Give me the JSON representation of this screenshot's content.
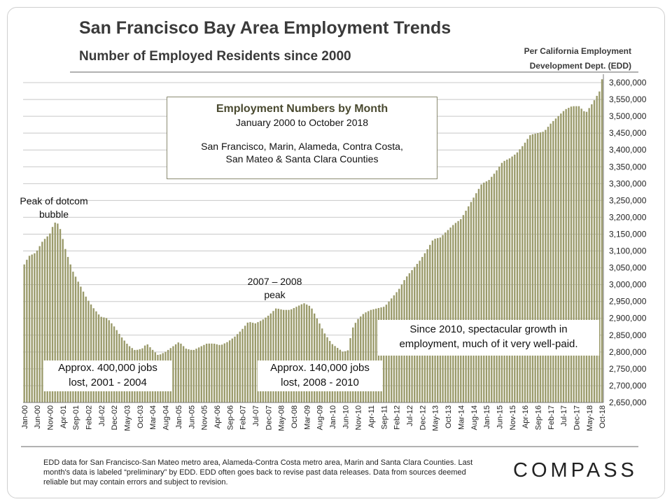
{
  "header": {
    "title": "San Francisco Bay Area Employment Trends",
    "subtitle": "Number of Employed  Residents since 2000",
    "source_line1": "Per California Employment",
    "source_line2": "Development Dept. (EDD)"
  },
  "infobox": {
    "title": "Employment Numbers by Month",
    "range": "January 2000 to October 2018",
    "counties_line1": "San Francisco, Marin, Alameda, Contra Costa,",
    "counties_line2": "San Mateo & Santa Clara Counties"
  },
  "annotations": {
    "dotcom_line1": "Peak of dotcom",
    "dotcom_line2": "bubble",
    "peak0708_line1": "2007 – 2008",
    "peak0708_line2": "peak",
    "lost0104_line1": "Approx. 400,000 jobs",
    "lost0104_line2": "lost, 2001 - 2004",
    "lost0810_line1": "Approx. 140,000 jobs",
    "lost0810_line2": "lost, 2008 - 2010",
    "growth_line1": "Since 2010, spectacular growth in",
    "growth_line2": "employment, much of it very well-paid."
  },
  "footer": {
    "footnote": "EDD data for San Francisco-San Mateo metro area, Alameda-Contra Costa metro area, Marin and Santa Clara Counties. Last month's data is labeled “preliminary” by EDD. EDD often goes back to revise past data releases. Data from sources deemed reliable but may contain errors and subject to revision.",
    "logo": "COMPASS"
  },
  "colors": {
    "bar": "#9a9a6a",
    "grid": "#c8c8c8",
    "axis": "#777777",
    "text": "#222222"
  },
  "chart_data": {
    "type": "bar",
    "title": "Employment Numbers by Month",
    "start": "Jan-00",
    "end": "Oct-18",
    "months": 226,
    "ylim": [
      2650000,
      3625000
    ],
    "yticks": [
      2650000,
      2700000,
      2750000,
      2800000,
      2850000,
      2900000,
      2950000,
      3000000,
      3050000,
      3100000,
      3150000,
      3200000,
      3250000,
      3300000,
      3350000,
      3400000,
      3450000,
      3500000,
      3550000,
      3600000
    ],
    "ytick_labels": [
      "2,650,000",
      "2,700,000",
      "2,750,000",
      "2,800,000",
      "2,850,000",
      "2,900,000",
      "2,950,000",
      "3,000,000",
      "3,050,000",
      "3,100,000",
      "3,150,000",
      "3,200,000",
      "3,250,000",
      "3,300,000",
      "3,350,000",
      "3,400,000",
      "3,450,000",
      "3,500,000",
      "3,550,000",
      "3,600,000"
    ],
    "xtick_labels": [
      "Jan-00",
      "Jun-00",
      "Nov-00",
      "Apr-01",
      "Sep-01",
      "Feb-02",
      "Jul-02",
      "Dec-02",
      "May-03",
      "Oct-03",
      "Mar-04",
      "Aug-04",
      "Jan-05",
      "Jun-05",
      "Nov-05",
      "Apr-06",
      "Sep-06",
      "Feb-07",
      "Jul-07",
      "Dec-07",
      "May-08",
      "Oct-08",
      "Mar-09",
      "Aug-09",
      "Jan-10",
      "Jun-10",
      "Nov-10",
      "Apr-11",
      "Sep-11",
      "Feb-12",
      "Jul-12",
      "Dec-12",
      "May-13",
      "Oct-13",
      "Mar-14",
      "Aug-14",
      "Jan-15",
      "Jun-15",
      "Nov-15",
      "Apr-16",
      "Sep-16",
      "Feb-17",
      "Jul-17",
      "Dec-17",
      "May-18",
      "Oct-18"
    ],
    "xtick_step_months": 5,
    "anchors": [
      [
        0,
        3060000
      ],
      [
        2,
        3085000
      ],
      [
        5,
        3095000
      ],
      [
        8,
        3130000
      ],
      [
        11,
        3150000
      ],
      [
        13,
        3185000
      ],
      [
        15,
        3180000
      ],
      [
        18,
        3100000
      ],
      [
        21,
        3040000
      ],
      [
        24,
        3000000
      ],
      [
        27,
        2960000
      ],
      [
        30,
        2930000
      ],
      [
        33,
        2905000
      ],
      [
        36,
        2900000
      ],
      [
        39,
        2875000
      ],
      [
        42,
        2845000
      ],
      [
        45,
        2820000
      ],
      [
        48,
        2805000
      ],
      [
        51,
        2810000
      ],
      [
        53,
        2825000
      ],
      [
        55,
        2810000
      ],
      [
        58,
        2790000
      ],
      [
        61,
        2800000
      ],
      [
        64,
        2815000
      ],
      [
        67,
        2830000
      ],
      [
        70,
        2810000
      ],
      [
        73,
        2805000
      ],
      [
        76,
        2815000
      ],
      [
        79,
        2825000
      ],
      [
        82,
        2825000
      ],
      [
        85,
        2820000
      ],
      [
        88,
        2830000
      ],
      [
        91,
        2845000
      ],
      [
        94,
        2865000
      ],
      [
        97,
        2890000
      ],
      [
        100,
        2885000
      ],
      [
        103,
        2895000
      ],
      [
        106,
        2910000
      ],
      [
        109,
        2930000
      ],
      [
        112,
        2925000
      ],
      [
        115,
        2925000
      ],
      [
        118,
        2935000
      ],
      [
        121,
        2945000
      ],
      [
        124,
        2935000
      ],
      [
        127,
        2895000
      ],
      [
        130,
        2855000
      ],
      [
        133,
        2825000
      ],
      [
        136,
        2810000
      ],
      [
        138,
        2800000
      ],
      [
        140,
        2805000
      ],
      [
        142,
        2870000
      ],
      [
        144,
        2895000
      ],
      [
        147,
        2915000
      ],
      [
        150,
        2925000
      ],
      [
        153,
        2930000
      ],
      [
        156,
        2935000
      ],
      [
        159,
        2960000
      ],
      [
        162,
        2985000
      ],
      [
        165,
        3020000
      ],
      [
        168,
        3045000
      ],
      [
        171,
        3070000
      ],
      [
        174,
        3100000
      ],
      [
        177,
        3135000
      ],
      [
        180,
        3140000
      ],
      [
        183,
        3160000
      ],
      [
        186,
        3180000
      ],
      [
        189,
        3195000
      ],
      [
        192,
        3230000
      ],
      [
        195,
        3265000
      ],
      [
        198,
        3300000
      ],
      [
        201,
        3310000
      ],
      [
        204,
        3335000
      ],
      [
        207,
        3365000
      ],
      [
        210,
        3375000
      ],
      [
        213,
        3390000
      ],
      [
        216,
        3415000
      ],
      [
        219,
        3445000
      ],
      [
        222,
        3450000
      ],
      [
        225,
        3455000
      ],
      [
        228,
        3480000
      ],
      [
        231,
        3500000
      ],
      [
        234,
        3520000
      ],
      [
        237,
        3530000
      ],
      [
        240,
        3530000
      ],
      [
        243,
        3510000
      ],
      [
        246,
        3540000
      ],
      [
        249,
        3575000
      ],
      [
        250,
        3610000
      ]
    ]
  }
}
